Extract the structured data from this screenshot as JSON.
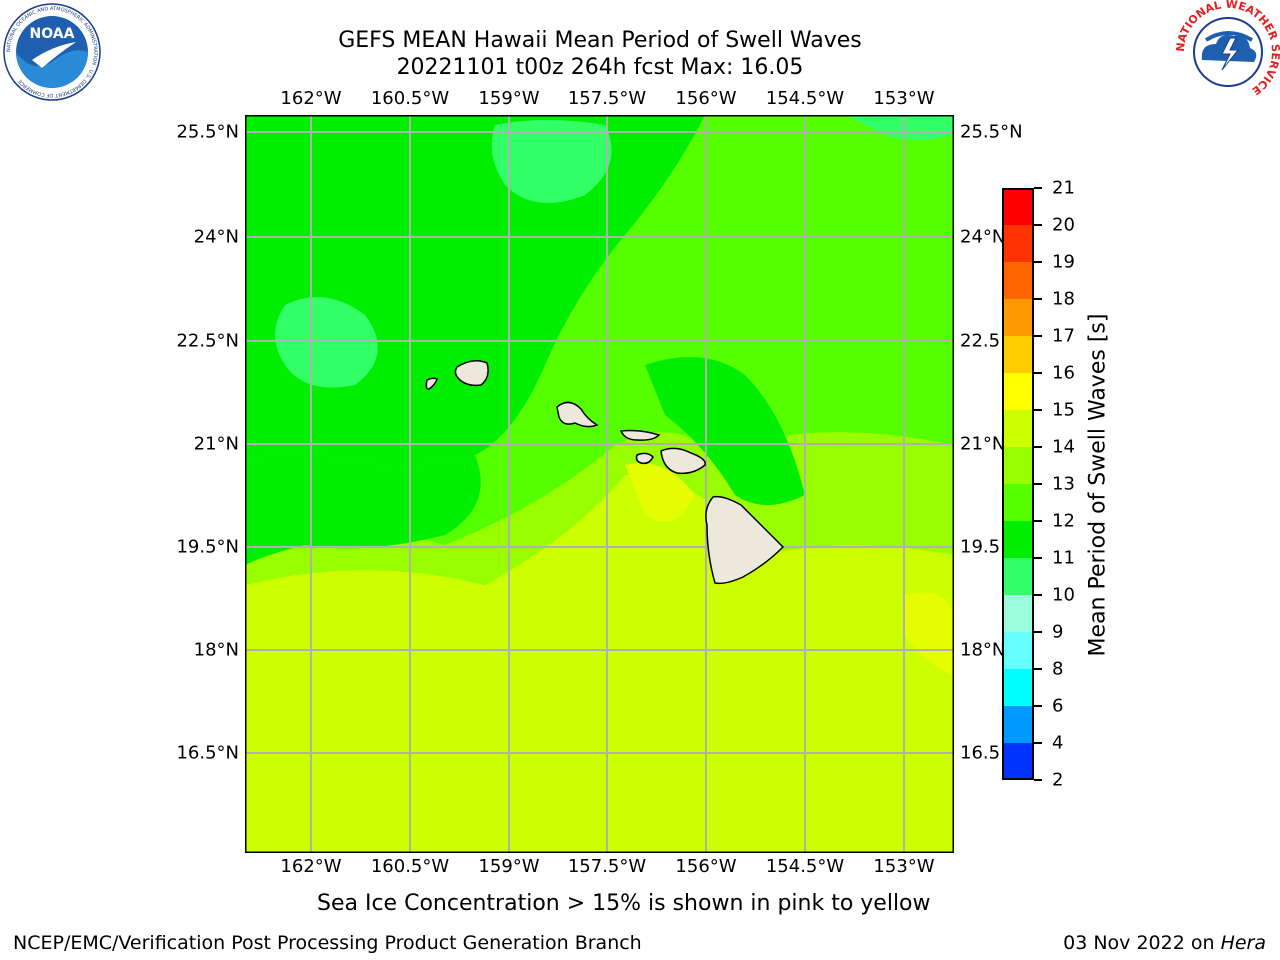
{
  "title": {
    "line1": "GEFS MEAN Hawaii Mean Period of Swell Waves",
    "line2": "20221101 t00z 264h fcst   Max: 16.05"
  },
  "map": {
    "lon_ticks": [
      "162°W",
      "160.5°W",
      "159°W",
      "157.5°W",
      "156°W",
      "154.5°W",
      "153°W"
    ],
    "lat_ticks": [
      "25.5°N",
      "24°N",
      "22.5°N",
      "21°N",
      "19.5°N",
      "18°N",
      "16.5°N"
    ],
    "right_lat_ticks": [
      "25.5°N",
      "24°N",
      "22.5",
      "21°N",
      "19.5",
      "18°N",
      "16.5"
    ],
    "land_color": "#ece9dc",
    "islands": [
      "Niihau",
      "Kauai",
      "Oahu",
      "Molokai",
      "Lanai",
      "Maui",
      "Hawaii"
    ]
  },
  "colorbar": {
    "title": "Mean Period of Swell Waves [s]",
    "levels": [
      "21",
      "20",
      "19",
      "18",
      "17",
      "16",
      "15",
      "14",
      "13",
      "12",
      "11",
      "10",
      "9",
      "8",
      "6",
      "4",
      "2"
    ],
    "colors": [
      "#ff0000",
      "#ff3300",
      "#ff6600",
      "#ff9900",
      "#ffcc00",
      "#ffff00",
      "#ccff00",
      "#99ff00",
      "#55ff00",
      "#00ee00",
      "#33ff66",
      "#99ffdd",
      "#66ffff",
      "#00ffff",
      "#0099ff",
      "#0033ff"
    ]
  },
  "note": "Sea Ice Concentration > 15% is shown in pink to yellow",
  "footer": {
    "left": "NCEP/EMC/Verification Post Processing Product Generation Branch",
    "date": "03 Nov 2022 on ",
    "machine": "Hera"
  },
  "logos": {
    "noaa_text": "NOAA",
    "noaa_ring": "NATIONAL OCEANIC AND ATMOSPHERIC ADMINISTRATION · U.S. DEPARTMENT OF COMMERCE",
    "nws_ring": "NATIONAL WEATHER SERVICE"
  }
}
